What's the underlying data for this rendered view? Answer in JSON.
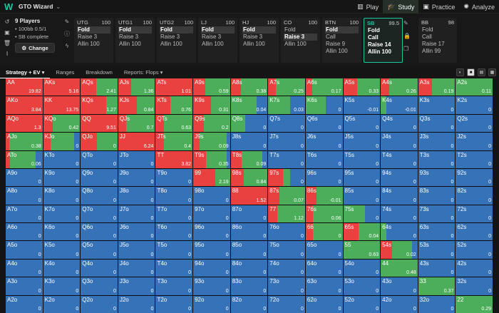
{
  "topbar": {
    "brand": "GTO Wizard",
    "nav": [
      {
        "label": "Play",
        "icon": "cards-icon",
        "glyph": "▥",
        "active": false
      },
      {
        "label": "Study",
        "icon": "graduation-cap-icon",
        "glyph": "🎓",
        "active": true
      },
      {
        "label": "Practice",
        "icon": "gamepad-icon",
        "glyph": "▣",
        "active": false
      },
      {
        "label": "Analyze",
        "icon": "lightbulb-icon",
        "glyph": "✺",
        "active": false
      }
    ]
  },
  "game": {
    "players": "9 Players",
    "stakes": "• 100bb 0.5/1",
    "sb_complete": "• SB complete",
    "change_label": "Change"
  },
  "positions": [
    {
      "name": "UTG",
      "stack": "100",
      "actions": [
        "Fold",
        "Raise 3",
        "Allin 100"
      ],
      "selected": 0
    },
    {
      "name": "UTG1",
      "stack": "100",
      "actions": [
        "Fold",
        "Raise 3",
        "Allin 100"
      ],
      "selected": 0
    },
    {
      "name": "UTG2",
      "stack": "100",
      "actions": [
        "Fold",
        "Raise 3",
        "Allin 100"
      ],
      "selected": 0
    },
    {
      "name": "LJ",
      "stack": "100",
      "actions": [
        "Fold",
        "Raise 3",
        "Allin 100"
      ],
      "selected": 0
    },
    {
      "name": "HJ",
      "stack": "100",
      "actions": [
        "Fold",
        "Raise 3",
        "Allin 100"
      ],
      "selected": 0
    },
    {
      "name": "CO",
      "stack": "100",
      "actions": [
        "Fold",
        "Raise 3",
        "Allin 100"
      ],
      "selected": 1
    },
    {
      "name": "BTN",
      "stack": "100",
      "actions": [
        "Fold",
        "Call",
        "Raise 9",
        "Allin 100"
      ],
      "selected": 0
    },
    {
      "name": "SB",
      "stack": "99.5",
      "actions": [
        "Fold",
        "Call",
        "Raise 14",
        "Allin 100"
      ],
      "selected": -1
    },
    {
      "name": "BB",
      "stack": "98",
      "actions": [
        "Fold",
        "Call",
        "Raise 17",
        "Allin 99"
      ],
      "selected": -1
    }
  ],
  "tabs": [
    {
      "label": "Strategy + EV ▾",
      "active": true
    },
    {
      "label": "Ranges",
      "active": false
    },
    {
      "label": "Breakdown",
      "active": false
    },
    {
      "label": "Reports: Flops ▾",
      "active": false
    }
  ],
  "colors": {
    "raise": "#e8413f",
    "call": "#4cae5b",
    "fold": "#3572b8"
  },
  "matrix": [
    [
      [
        "AA",
        100,
        0,
        "19.82"
      ],
      [
        "AKs",
        100,
        0,
        "5.16"
      ],
      [
        "AQs",
        42,
        58,
        "2.41"
      ],
      [
        "AJs",
        35,
        65,
        "1.36"
      ],
      [
        "ATs",
        100,
        0,
        "1.01"
      ],
      [
        "A9s",
        32,
        68,
        "0.59"
      ],
      [
        "A8s",
        28,
        72,
        "0.38"
      ],
      [
        "A7s",
        20,
        80,
        "0.25"
      ],
      [
        "A6s",
        17,
        83,
        "0.17"
      ],
      [
        "A5s",
        38,
        62,
        "0.33"
      ],
      [
        "A4s",
        23,
        77,
        "0.26"
      ],
      [
        "A3s",
        37,
        63,
        "0.19"
      ],
      [
        "A2s",
        0,
        100,
        "0.11"
      ]
    ],
    [
      [
        "AKo",
        100,
        0,
        "3.84"
      ],
      [
        "KK",
        100,
        0,
        "13.75"
      ],
      [
        "KQs",
        70,
        30,
        "1.27"
      ],
      [
        "KJs",
        50,
        50,
        "0.84"
      ],
      [
        "KTs",
        40,
        60,
        "0.76"
      ],
      [
        "K9s",
        48,
        52,
        "0.31"
      ],
      [
        "K8s",
        0,
        70,
        "0.04"
      ],
      [
        "K7s",
        0,
        60,
        "0.03"
      ],
      [
        "K6s",
        0,
        55,
        "0"
      ],
      [
        "K5s",
        0,
        0,
        "-0.01"
      ],
      [
        "K4s",
        0,
        15,
        "-0.01"
      ],
      [
        "K3s",
        0,
        0,
        "0"
      ],
      [
        "K2s",
        0,
        0,
        "0"
      ]
    ],
    [
      [
        "AQo",
        100,
        0,
        "1.3"
      ],
      [
        "KQo",
        25,
        75,
        "0.42"
      ],
      [
        "QQ",
        100,
        0,
        "9.51"
      ],
      [
        "QJs",
        22,
        78,
        "0.7"
      ],
      [
        "QTs",
        22,
        78,
        "0.63"
      ],
      [
        "Q9s",
        28,
        72,
        "0.2"
      ],
      [
        "Q8s",
        0,
        40,
        "0"
      ],
      [
        "Q7s",
        0,
        0,
        "0"
      ],
      [
        "Q6s",
        0,
        0,
        "0"
      ],
      [
        "Q5s",
        0,
        0,
        "0"
      ],
      [
        "Q4s",
        0,
        0,
        "0"
      ],
      [
        "Q3s",
        0,
        0,
        "0"
      ],
      [
        "Q2s",
        0,
        0,
        "0"
      ]
    ],
    [
      [
        "AJo",
        10,
        90,
        "0.38"
      ],
      [
        "KJo",
        20,
        65,
        "0"
      ],
      [
        "QJo",
        45,
        55,
        "0"
      ],
      [
        "JJ",
        100,
        0,
        "6.24"
      ],
      [
        "JTs",
        22,
        78,
        "0.4"
      ],
      [
        "J9s",
        18,
        72,
        "0.09"
      ],
      [
        "J8s",
        0,
        0,
        "0"
      ],
      [
        "J7s",
        0,
        0,
        "0"
      ],
      [
        "J6s",
        0,
        0,
        "0"
      ],
      [
        "J5s",
        0,
        0,
        "0"
      ],
      [
        "J4s",
        0,
        0,
        "0"
      ],
      [
        "J3s",
        0,
        0,
        "0"
      ],
      [
        "J2s",
        0,
        0,
        "0"
      ]
    ],
    [
      [
        "ATo",
        12,
        70,
        "0.06"
      ],
      [
        "KTo",
        0,
        0,
        "0"
      ],
      [
        "QTo",
        0,
        0,
        "0"
      ],
      [
        "JTo",
        0,
        0,
        "0"
      ],
      [
        "TT",
        100,
        0,
        "3.82"
      ],
      [
        "T9s",
        35,
        55,
        "0.35"
      ],
      [
        "T8s",
        30,
        55,
        "0.09"
      ],
      [
        "T7s",
        0,
        0,
        "0"
      ],
      [
        "T6s",
        0,
        0,
        "0"
      ],
      [
        "T5s",
        0,
        0,
        "0"
      ],
      [
        "T4s",
        0,
        0,
        "0"
      ],
      [
        "T3s",
        0,
        0,
        "0"
      ],
      [
        "T2s",
        0,
        0,
        "0"
      ]
    ],
    [
      [
        "A9o",
        0,
        0,
        "0"
      ],
      [
        "K9o",
        0,
        0,
        "0"
      ],
      [
        "Q9o",
        0,
        0,
        "0"
      ],
      [
        "J9o",
        0,
        0,
        "0"
      ],
      [
        "T9o",
        0,
        0,
        "0"
      ],
      [
        "99",
        60,
        40,
        "2.19"
      ],
      [
        "98s",
        35,
        65,
        "0.84"
      ],
      [
        "97s",
        40,
        20,
        "0"
      ],
      [
        "96s",
        0,
        0,
        "0"
      ],
      [
        "95s",
        0,
        0,
        "0"
      ],
      [
        "94s",
        0,
        0,
        "0"
      ],
      [
        "93s",
        0,
        0,
        "0"
      ],
      [
        "92s",
        0,
        0,
        "0"
      ]
    ],
    [
      [
        "A8o",
        0,
        0,
        "0"
      ],
      [
        "K8o",
        0,
        0,
        "0"
      ],
      [
        "Q8o",
        0,
        0,
        "0"
      ],
      [
        "J8o",
        0,
        0,
        "0"
      ],
      [
        "T8o",
        0,
        0,
        "0"
      ],
      [
        "98o",
        0,
        0,
        "0"
      ],
      [
        "88",
        100,
        0,
        "1.52"
      ],
      [
        "87s",
        30,
        70,
        "0.07"
      ],
      [
        "86s",
        30,
        70,
        "-0.01"
      ],
      [
        "85s",
        0,
        0,
        "0"
      ],
      [
        "84s",
        0,
        0,
        "0"
      ],
      [
        "83s",
        0,
        0,
        "0"
      ],
      [
        "82s",
        0,
        0,
        "0"
      ]
    ],
    [
      [
        "A7o",
        0,
        0,
        "0"
      ],
      [
        "K7o",
        0,
        0,
        "0"
      ],
      [
        "Q7o",
        0,
        0,
        "0"
      ],
      [
        "J7o",
        0,
        0,
        "0"
      ],
      [
        "T7o",
        0,
        0,
        "0"
      ],
      [
        "97o",
        0,
        0,
        "0"
      ],
      [
        "87o",
        0,
        0,
        "0"
      ],
      [
        "77",
        25,
        75,
        "1.12"
      ],
      [
        "76s",
        20,
        80,
        "0.06"
      ],
      [
        "75s",
        0,
        60,
        "0"
      ],
      [
        "74s",
        0,
        0,
        "0"
      ],
      [
        "73s",
        0,
        0,
        "0"
      ],
      [
        "72s",
        0,
        0,
        "0"
      ]
    ],
    [
      [
        "A6o",
        0,
        0,
        "0"
      ],
      [
        "K6o",
        0,
        0,
        "0"
      ],
      [
        "Q6o",
        0,
        0,
        "0"
      ],
      [
        "J6o",
        0,
        0,
        "0"
      ],
      [
        "T6o",
        0,
        0,
        "0"
      ],
      [
        "96o",
        0,
        0,
        "0"
      ],
      [
        "86o",
        0,
        0,
        "0"
      ],
      [
        "76o",
        0,
        0,
        "0"
      ],
      [
        "66",
        20,
        80,
        "0"
      ],
      [
        "65s",
        42,
        58,
        "0.04"
      ],
      [
        "64s",
        0,
        15,
        "0"
      ],
      [
        "63s",
        0,
        0,
        "0"
      ],
      [
        "62s",
        0,
        0,
        "0"
      ]
    ],
    [
      [
        "A5o",
        0,
        0,
        "0"
      ],
      [
        "K5o",
        0,
        0,
        "0"
      ],
      [
        "Q5o",
        0,
        0,
        "0"
      ],
      [
        "J5o",
        0,
        0,
        "0"
      ],
      [
        "T5o",
        0,
        0,
        "0"
      ],
      [
        "95o",
        0,
        0,
        "0"
      ],
      [
        "85o",
        0,
        0,
        "0"
      ],
      [
        "75o",
        0,
        0,
        "0"
      ],
      [
        "65o",
        0,
        0,
        "0"
      ],
      [
        "55",
        0,
        100,
        "0.63"
      ],
      [
        "54s",
        30,
        55,
        "0.02"
      ],
      [
        "53s",
        0,
        0,
        "0"
      ],
      [
        "52s",
        0,
        0,
        "0"
      ]
    ],
    [
      [
        "A4o",
        0,
        0,
        "0"
      ],
      [
        "K4o",
        0,
        0,
        "0"
      ],
      [
        "Q4o",
        0,
        0,
        "0"
      ],
      [
        "J4o",
        0,
        0,
        "0"
      ],
      [
        "T4o",
        0,
        0,
        "0"
      ],
      [
        "94o",
        0,
        0,
        "0"
      ],
      [
        "84o",
        0,
        0,
        "0"
      ],
      [
        "74o",
        0,
        0,
        "0"
      ],
      [
        "64o",
        0,
        0,
        "0"
      ],
      [
        "54o",
        0,
        0,
        "0"
      ],
      [
        "44",
        0,
        100,
        "0.48"
      ],
      [
        "43s",
        0,
        0,
        "0"
      ],
      [
        "42s",
        0,
        0,
        "0"
      ]
    ],
    [
      [
        "A3o",
        0,
        0,
        "0"
      ],
      [
        "K3o",
        0,
        0,
        "0"
      ],
      [
        "Q3o",
        0,
        0,
        "0"
      ],
      [
        "J3o",
        0,
        0,
        "0"
      ],
      [
        "T3o",
        0,
        0,
        "0"
      ],
      [
        "93o",
        0,
        0,
        "0"
      ],
      [
        "83o",
        0,
        0,
        "0"
      ],
      [
        "73o",
        0,
        0,
        "0"
      ],
      [
        "63o",
        0,
        0,
        "0"
      ],
      [
        "53o",
        0,
        0,
        "0"
      ],
      [
        "43o",
        0,
        0,
        "0"
      ],
      [
        "33",
        0,
        100,
        "0.37"
      ],
      [
        "32s",
        0,
        0,
        "0"
      ]
    ],
    [
      [
        "A2o",
        0,
        0,
        "0"
      ],
      [
        "K2o",
        0,
        0,
        "0"
      ],
      [
        "Q2o",
        0,
        0,
        "0"
      ],
      [
        "J2o",
        0,
        0,
        "0"
      ],
      [
        "T2o",
        0,
        0,
        "0"
      ],
      [
        "92o",
        0,
        0,
        "0"
      ],
      [
        "82o",
        0,
        0,
        "0"
      ],
      [
        "72o",
        0,
        0,
        "0"
      ],
      [
        "62o",
        0,
        0,
        "0"
      ],
      [
        "52o",
        0,
        0,
        "0"
      ],
      [
        "42o",
        0,
        0,
        "0"
      ],
      [
        "32o",
        0,
        0,
        "0"
      ],
      [
        "22",
        0,
        100,
        "0.29"
      ]
    ]
  ]
}
